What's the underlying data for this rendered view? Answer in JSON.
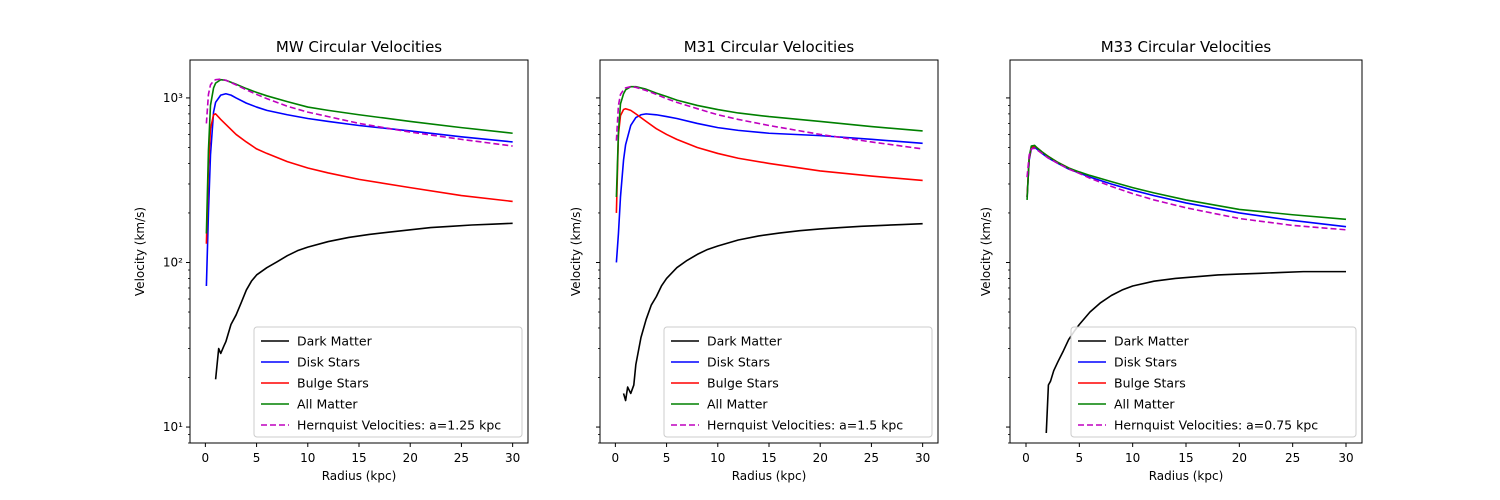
{
  "chart_data": [
    {
      "type": "line",
      "title": "MW Circular Velocities",
      "xlabel": "Radius (kpc)",
      "ylabel": "Velocity (km/s)",
      "yscale": "log",
      "xlim": [
        -1.5,
        31.5
      ],
      "ylim": [
        8,
        1700
      ],
      "xticks": [
        0,
        5,
        10,
        15,
        20,
        25,
        30
      ],
      "yticks": [
        {
          "value": 10,
          "label": "10¹"
        },
        {
          "value": 100,
          "label": "10²"
        },
        {
          "value": 1000,
          "label": "10³"
        }
      ],
      "show_ytick_labels": true,
      "legend": "lower-right",
      "series": [
        {
          "name": "Dark Matter",
          "color": "#000000",
          "dash": "solid",
          "x": [
            1,
            1.3,
            1.5,
            1.8,
            2,
            2.5,
            3,
            3.5,
            4,
            4.5,
            5,
            6,
            7,
            8,
            9,
            10,
            12,
            14,
            16,
            18,
            20,
            22,
            24,
            26,
            28,
            30
          ],
          "y": [
            19.5,
            30,
            28,
            31,
            33,
            42,
            48,
            57,
            68,
            77,
            84,
            93,
            101,
            110,
            118,
            124,
            134,
            142,
            148,
            153,
            158,
            163,
            166,
            169,
            171,
            173
          ]
        },
        {
          "name": "Disk Stars",
          "color": "#0000ff",
          "dash": "solid",
          "x": [
            0.1,
            0.3,
            0.5,
            0.8,
            1,
            1.5,
            2,
            2.5,
            3,
            4,
            5,
            6,
            8,
            10,
            12,
            15,
            20,
            25,
            30
          ],
          "y": [
            72,
            200,
            450,
            820,
            940,
            1040,
            1060,
            1040,
            1000,
            930,
            880,
            840,
            790,
            750,
            720,
            680,
            630,
            580,
            540
          ]
        },
        {
          "name": "Bulge Stars",
          "color": "#ff0000",
          "dash": "solid",
          "x": [
            0.1,
            0.3,
            0.5,
            0.8,
            1,
            1.5,
            2,
            3,
            4,
            5,
            6,
            8,
            10,
            12,
            15,
            20,
            25,
            30
          ],
          "y": [
            130,
            380,
            650,
            790,
            800,
            740,
            690,
            600,
            540,
            490,
            460,
            410,
            375,
            350,
            320,
            285,
            255,
            235
          ]
        },
        {
          "name": "All Matter",
          "color": "#008000",
          "dash": "solid",
          "x": [
            0.1,
            0.3,
            0.5,
            0.8,
            1,
            1.5,
            2,
            3,
            4,
            5,
            6,
            8,
            10,
            12,
            15,
            20,
            25,
            30
          ],
          "y": [
            150,
            480,
            900,
            1150,
            1230,
            1290,
            1280,
            1210,
            1140,
            1080,
            1030,
            950,
            880,
            840,
            790,
            720,
            660,
            610
          ]
        },
        {
          "name": "Hernquist Velocities: a=1.25 kpc",
          "color": "#bf00bf",
          "dash": "dashed",
          "x": [
            0.1,
            0.3,
            0.5,
            0.8,
            1,
            1.5,
            2,
            3,
            4,
            5,
            6,
            8,
            10,
            12,
            15,
            20,
            25,
            30
          ],
          "y": [
            700,
            1050,
            1200,
            1270,
            1290,
            1300,
            1280,
            1200,
            1120,
            1050,
            990,
            890,
            820,
            770,
            700,
            620,
            560,
            510
          ]
        }
      ]
    },
    {
      "type": "line",
      "title": "M31 Circular Velocities",
      "xlabel": "Radius (kpc)",
      "ylabel": "Velocity (km/s)",
      "yscale": "log",
      "xlim": [
        -1.5,
        31.5
      ],
      "ylim": [
        8,
        1700
      ],
      "xticks": [
        0,
        5,
        10,
        15,
        20,
        25,
        30
      ],
      "yticks": [
        {
          "value": 10,
          "label": ""
        },
        {
          "value": 100,
          "label": ""
        },
        {
          "value": 1000,
          "label": ""
        }
      ],
      "show_ytick_labels": false,
      "legend": "lower-right",
      "series": [
        {
          "name": "Dark Matter",
          "color": "#000000",
          "dash": "solid",
          "x": [
            0.8,
            1,
            1.2,
            1.5,
            1.8,
            2,
            2.5,
            3,
            3.5,
            4,
            4.5,
            5,
            6,
            7,
            8,
            9,
            10,
            12,
            14,
            16,
            18,
            20,
            22,
            24,
            26,
            28,
            30
          ],
          "y": [
            16,
            14.5,
            17.5,
            16,
            18,
            24,
            35,
            45,
            55,
            62,
            72,
            80,
            93,
            103,
            112,
            120,
            126,
            137,
            145,
            151,
            156,
            160,
            163,
            166,
            168,
            170,
            172
          ]
        },
        {
          "name": "Disk Stars",
          "color": "#0000ff",
          "dash": "solid",
          "x": [
            0.1,
            0.3,
            0.5,
            0.8,
            1,
            1.5,
            2,
            2.5,
            3,
            4,
            5,
            6,
            8,
            10,
            12,
            15,
            20,
            25,
            30
          ],
          "y": [
            100,
            150,
            250,
            420,
            520,
            680,
            760,
            790,
            800,
            790,
            770,
            750,
            700,
            660,
            635,
            610,
            590,
            560,
            530
          ]
        },
        {
          "name": "Bulge Stars",
          "color": "#ff0000",
          "dash": "solid",
          "x": [
            0.1,
            0.3,
            0.5,
            0.8,
            1,
            1.5,
            2,
            3,
            4,
            5,
            6,
            8,
            10,
            12,
            15,
            20,
            25,
            30
          ],
          "y": [
            200,
            600,
            780,
            850,
            860,
            840,
            800,
            720,
            650,
            600,
            560,
            500,
            460,
            430,
            400,
            360,
            335,
            315
          ]
        },
        {
          "name": "All Matter",
          "color": "#008000",
          "dash": "solid",
          "x": [
            0.1,
            0.3,
            0.5,
            0.8,
            1,
            1.5,
            2,
            3,
            4,
            5,
            6,
            8,
            10,
            12,
            15,
            20,
            25,
            30
          ],
          "y": [
            250,
            620,
            920,
            1060,
            1120,
            1170,
            1170,
            1130,
            1070,
            1020,
            970,
            900,
            850,
            810,
            770,
            720,
            670,
            630
          ]
        },
        {
          "name": "Hernquist Velocities: a=1.5 kpc",
          "color": "#bf00bf",
          "dash": "dashed",
          "x": [
            0.1,
            0.3,
            0.5,
            0.8,
            1,
            1.5,
            2,
            3,
            4,
            5,
            6,
            8,
            10,
            12,
            15,
            20,
            25,
            30
          ],
          "y": [
            550,
            900,
            1050,
            1120,
            1150,
            1170,
            1160,
            1110,
            1050,
            990,
            940,
            860,
            790,
            740,
            680,
            600,
            540,
            490
          ]
        }
      ]
    },
    {
      "type": "line",
      "title": "M33 Circular Velocities",
      "xlabel": "Radius (kpc)",
      "ylabel": "Velocity (km/s)",
      "yscale": "log",
      "xlim": [
        -1.5,
        31.5
      ],
      "ylim": [
        8,
        1700
      ],
      "xticks": [
        0,
        5,
        10,
        15,
        20,
        25,
        30
      ],
      "yticks": [
        {
          "value": 10,
          "label": ""
        },
        {
          "value": 100,
          "label": ""
        },
        {
          "value": 1000,
          "label": ""
        }
      ],
      "show_ytick_labels": false,
      "legend": "lower-right",
      "series": [
        {
          "name": "Dark Matter",
          "color": "#000000",
          "dash": "solid",
          "x": [
            1.9,
            2.1,
            2.3,
            2.6,
            3,
            3.5,
            4,
            4.5,
            5,
            6,
            7,
            8,
            9,
            10,
            12,
            14,
            16,
            18,
            20,
            22,
            24,
            26,
            28,
            30
          ],
          "y": [
            9.2,
            18,
            19,
            22,
            25,
            29,
            34,
            38,
            42,
            50,
            57,
            63,
            68,
            72,
            77,
            80,
            82,
            84,
            85,
            86,
            87,
            88,
            88,
            88
          ]
        },
        {
          "name": "Disk Stars",
          "color": "#0000ff",
          "dash": "solid",
          "x": [
            0.1,
            0.3,
            0.5,
            0.8,
            1,
            1.5,
            2,
            3,
            4,
            5,
            6,
            8,
            10,
            12,
            15,
            20,
            25,
            30
          ],
          "y": [
            250,
            420,
            490,
            500,
            490,
            460,
            435,
            400,
            370,
            350,
            330,
            300,
            275,
            255,
            230,
            200,
            180,
            165
          ]
        },
        {
          "name": "Bulge Stars",
          "color": "#ff0000",
          "dash": "solid",
          "x": [
            0.1,
            0.3,
            0.5,
            0.8,
            1,
            1.5,
            2,
            3,
            4,
            5
          ],
          "y": [
            250,
            430,
            500,
            510,
            500,
            470,
            445,
            405,
            375,
            352
          ]
        },
        {
          "name": "All Matter",
          "color": "#008000",
          "dash": "solid",
          "x": [
            0.1,
            0.3,
            0.5,
            0.8,
            1,
            1.5,
            2,
            3,
            4,
            5,
            6,
            8,
            10,
            12,
            15,
            20,
            25,
            30
          ],
          "y": [
            240,
            440,
            510,
            515,
            500,
            470,
            445,
            405,
            375,
            355,
            338,
            310,
            285,
            265,
            240,
            210,
            195,
            183
          ]
        },
        {
          "name": "Hernquist Velocities: a=0.75 kpc",
          "color": "#bf00bf",
          "dash": "dashed",
          "x": [
            0.1,
            0.3,
            0.5,
            0.8,
            1,
            1.5,
            2,
            3,
            4,
            5,
            6,
            8,
            10,
            12,
            15,
            20,
            25,
            30
          ],
          "y": [
            330,
            450,
            490,
            495,
            485,
            460,
            435,
            400,
            370,
            348,
            325,
            290,
            262,
            240,
            215,
            185,
            168,
            158
          ]
        }
      ]
    }
  ]
}
